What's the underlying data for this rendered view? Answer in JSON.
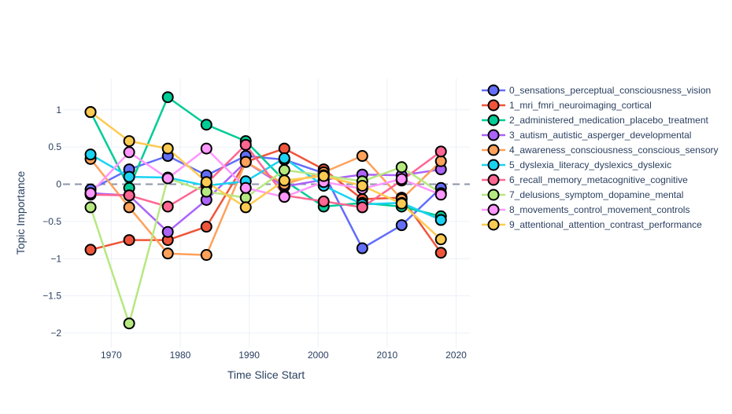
{
  "chart_data": {
    "type": "line",
    "title": "",
    "xlabel": "Time Slice Start",
    "ylabel": "Topic Importance",
    "xlim": [
      1963,
      2022
    ],
    "ylim": [
      -2.2,
      1.42
    ],
    "xticks": [
      1970,
      1980,
      1990,
      2000,
      2010,
      2020
    ],
    "yticks": [
      1,
      0.5,
      0,
      -0.5,
      -1,
      -1.5,
      -2
    ],
    "ytick_labels": [
      "1",
      "0.5",
      "0",
      "−0.5",
      "−1",
      "−1.5",
      "−2"
    ],
    "grid": true,
    "zero_line": true,
    "legend_position": "right",
    "x": [
      1967,
      1972.6,
      1978.2,
      1983.8,
      1989.5,
      1995.1,
      2000.8,
      2006.4,
      2012.1,
      2017.8
    ],
    "series": [
      {
        "name": "0_sensations_perceptual_consciousness_vision",
        "color": "#636efa",
        "values": [
          -0.07,
          0.2,
          0.38,
          0.12,
          0.38,
          0.33,
          0.15,
          -0.86,
          -0.55,
          -0.05
        ]
      },
      {
        "name": "1_mri_fmri_neuroimaging_cortical",
        "color": "#ef553b",
        "values": [
          -0.88,
          -0.75,
          -0.75,
          -0.57,
          0.3,
          0.48,
          0.2,
          -0.2,
          -0.18,
          -0.92
        ]
      },
      {
        "name": "2_administered_medication_placebo_treatment",
        "color": "#00cc96",
        "values": [
          0.97,
          -0.05,
          1.17,
          0.8,
          0.58,
          0.05,
          -0.3,
          -0.25,
          -0.3,
          -0.43
        ]
      },
      {
        "name": "3_autism_autistic_asperger_developmental",
        "color": "#ab63fa",
        "values": [
          -0.12,
          -0.15,
          -0.64,
          -0.21,
          0.3,
          -0.03,
          0.06,
          0.13,
          0.12,
          0.2
        ]
      },
      {
        "name": "4_awareness_consciousness_conscious_sensory",
        "color": "#ffa15a",
        "values": [
          0.34,
          -0.31,
          -0.93,
          -0.95,
          0.3,
          0.0,
          0.16,
          0.38,
          -0.2,
          0.31
        ]
      },
      {
        "name": "5_dyslexia_literacy_dyslexics_dyslexic",
        "color": "#19d3f3",
        "values": [
          0.4,
          0.1,
          0.09,
          -0.02,
          0.04,
          0.35,
          -0.02,
          -0.27,
          -0.25,
          -0.48
        ]
      },
      {
        "name": "6_recall_memory_metacognitive_cognitive",
        "color": "#ff6692",
        "values": [
          -0.14,
          -0.15,
          -0.3,
          0.01,
          0.53,
          -0.15,
          -0.23,
          -0.31,
          0.05,
          0.44
        ]
      },
      {
        "name": "7_delusions_symptom_dopamine_mental",
        "color": "#b6e880",
        "values": [
          -0.31,
          -1.87,
          0.08,
          -0.1,
          -0.18,
          0.19,
          0.12,
          0.04,
          0.23,
          -0.12
        ]
      },
      {
        "name": "8_movements_control_movement_controls",
        "color": "#ff97ff",
        "values": [
          -0.12,
          0.43,
          0.08,
          0.48,
          -0.05,
          -0.17,
          0.03,
          -0.06,
          0.07,
          -0.14
        ]
      },
      {
        "name": "9_attentional_attention_contrast_performance",
        "color": "#fecb52",
        "values": [
          0.97,
          0.58,
          0.48,
          0.03,
          -0.31,
          0.05,
          0.11,
          -0.02,
          -0.26,
          -0.74
        ]
      }
    ]
  }
}
